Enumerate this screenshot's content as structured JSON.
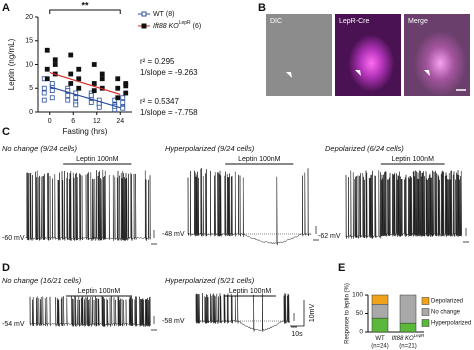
{
  "panels": {
    "a": "A",
    "b": "B",
    "c": "C",
    "d": "D",
    "e": "E"
  },
  "chart_data": [
    {
      "type": "scatter",
      "y_label": "Leptin (ng/mL)",
      "x_label": "Fasting (hrs)",
      "categories": [
        "0",
        "6",
        "12",
        "24"
      ],
      "ylim": [
        0,
        20
      ],
      "yticks": [
        0,
        5,
        10,
        15,
        20
      ],
      "significance": "**",
      "series": [
        {
          "name": "WT",
          "count": "(8)",
          "color": "#2a4fa0",
          "marker": "open",
          "values": [
            [
              7,
              5.5,
              5,
              4.5,
              4,
              3,
              2.5,
              6
            ],
            [
              5,
              4,
              3.5,
              3,
              2.5,
              2,
              4.5,
              1.5
            ],
            [
              3,
              2.5,
              2,
              1.5,
              4,
              1.8,
              3.5,
              1
            ],
            [
              2.5,
              2,
              1.5,
              1,
              0.5,
              3,
              1.2,
              0.8
            ]
          ],
          "fit": [
            5.3,
            0.9
          ],
          "stats": [
            "r² = 0.5347",
            "1/slope = -7.758"
          ]
        },
        {
          "name": "Ift88 KO",
          "name_sup": "LepR",
          "count": "(6)",
          "color": "#d62a2a",
          "marker": "filled",
          "values": [
            [
              13,
              11,
              9,
              8,
              7,
              10
            ],
            [
              12,
              9,
              8,
              7,
              6,
              5
            ],
            [
              10,
              7,
              6,
              5,
              4.5,
              8
            ],
            [
              7,
              6,
              5,
              4,
              3,
              5.5
            ]
          ],
          "fit": [
            8.3,
            3.7
          ],
          "stats": [
            "r² = 0.295",
            "1/slope = -9.263"
          ]
        }
      ]
    },
    {
      "type": "bar",
      "stacked": true,
      "y_label": "Response to leptin (%)",
      "categories": [
        "WT",
        "Ift88 KO"
      ],
      "category_sup": "LepR",
      "category_notes": [
        "(n=24)",
        "(n=21)"
      ],
      "ylim": [
        0,
        100
      ],
      "yticks": [
        0,
        50,
        100
      ],
      "series": [
        {
          "name": "Hyperpolarized",
          "color": "#5bb83a",
          "values": [
            37.5,
            24
          ]
        },
        {
          "name": "No change",
          "color": "#a9a9a9",
          "values": [
            37.5,
            76
          ]
        },
        {
          "name": "Depolarized",
          "color": "#f0a21a",
          "values": [
            25,
            0
          ]
        }
      ]
    }
  ],
  "images": {
    "labels": [
      "DIC",
      "LepR-Cre",
      "Merge"
    ]
  },
  "traces": {
    "c": [
      {
        "title": "No change (9/24 cells)",
        "stimulus": "Leptin 100nM",
        "potential": "-60 mV"
      },
      {
        "title": "Hyperpolarized (9/24 cells)",
        "stimulus": "Leptin 100nM",
        "potential": "-48 mV"
      },
      {
        "title": "Depolarized (6/24 cells)",
        "stimulus": "Leptin 100nM",
        "potential": "-62 mV"
      }
    ],
    "d": [
      {
        "title": "No change (16/21 cells)",
        "stimulus": "Leptin 100nM",
        "potential": "-54 mV"
      },
      {
        "title": "Hyperpolarized (5/21 cells)",
        "stimulus": "Leptin 100nM",
        "potential": "-58 mV"
      }
    ],
    "scale": {
      "voltage": "10mV",
      "time": "10s"
    }
  }
}
